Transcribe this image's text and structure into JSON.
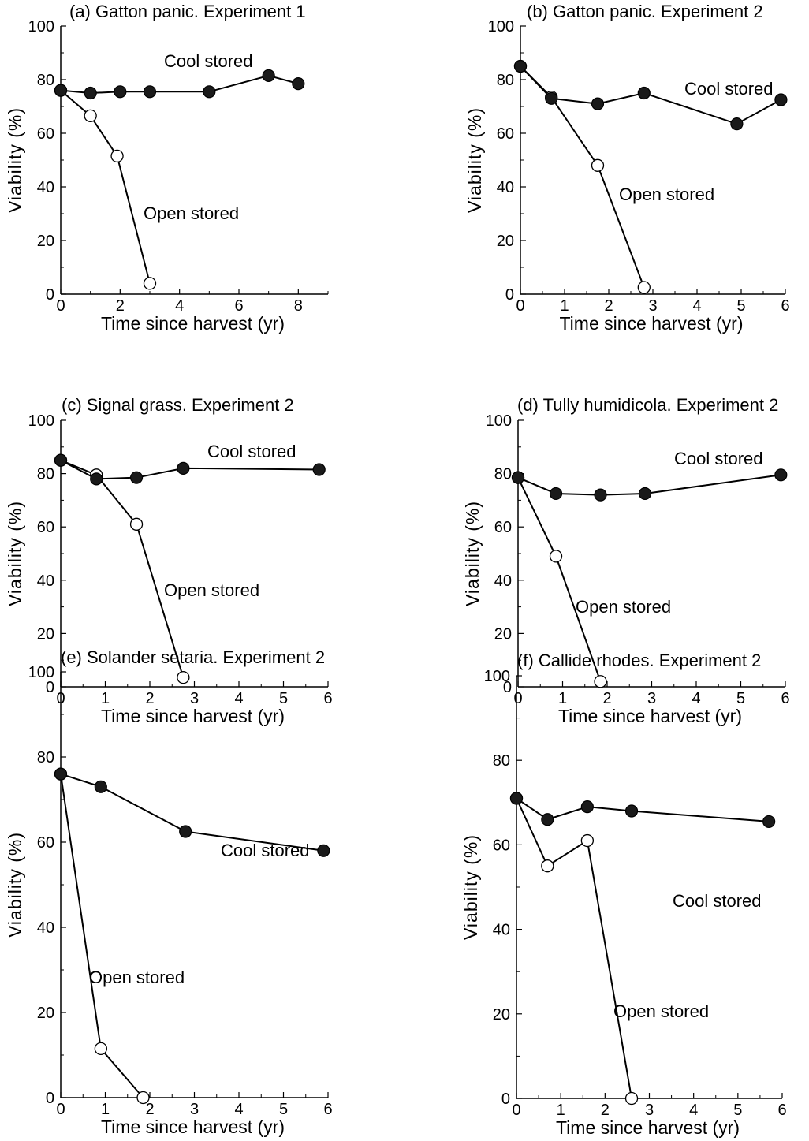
{
  "chart_data": [
    {
      "type": "line",
      "title": "(a) Gatton panic. Experiment 1",
      "xlabel": "Time since harvest (yr)",
      "ylabel": "Viability (%)",
      "xlim": [
        0,
        9
      ],
      "ylim": [
        0,
        100
      ],
      "xticks": [
        0,
        2,
        4,
        6,
        8
      ],
      "xtick_labels": [
        "0",
        "2",
        "4",
        "6",
        "8"
      ],
      "yticks": [
        0,
        20,
        40,
        60,
        80,
        100
      ],
      "series": [
        {
          "name": "Cool stored",
          "marker": "filled",
          "x": [
            0,
            1,
            2,
            3,
            5,
            7,
            8
          ],
          "y": [
            76,
            75,
            75.5,
            75.5,
            75.5,
            81.5,
            78.5
          ]
        },
        {
          "name": "Open stored",
          "marker": "open",
          "x": [
            0,
            1,
            1.9,
            3
          ],
          "y": [
            76,
            66.5,
            51.5,
            4
          ]
        }
      ]
    },
    {
      "type": "line",
      "title": "(b) Gatton panic. Experiment 2",
      "xlabel": "Time since harvest (yr)",
      "ylabel": "Viability (%)",
      "xlim": [
        0,
        6
      ],
      "ylim": [
        0,
        100
      ],
      "xticks": [
        0,
        1,
        2,
        3,
        4,
        5,
        6
      ],
      "xtick_labels": [
        "0",
        "1",
        "2",
        "3",
        "4",
        "5",
        "6"
      ],
      "yticks": [
        0,
        20,
        40,
        60,
        80,
        100
      ],
      "series": [
        {
          "name": "Cool stored",
          "marker": "filled",
          "x": [
            0,
            0.7,
            1.75,
            2.8,
            4.9,
            5.9
          ],
          "y": [
            85,
            73,
            71,
            75,
            63.5,
            72.5
          ]
        },
        {
          "name": "Open stored",
          "marker": "open",
          "x": [
            0,
            0.7,
            1.75,
            2.8
          ],
          "y": [
            85,
            73.5,
            48,
            2.5
          ]
        }
      ]
    },
    {
      "type": "line",
      "title": "(c) Signal grass. Experiment 2",
      "xlabel": "Time since harvest (yr)",
      "ylabel": "Viability (%)",
      "xlim": [
        0,
        6
      ],
      "ylim": [
        0,
        100
      ],
      "xticks": [
        0,
        1,
        2,
        3,
        4,
        5,
        6
      ],
      "xtick_labels": [
        "0",
        "1",
        "2",
        "3",
        "4",
        "5",
        "6"
      ],
      "yticks": [
        0,
        20,
        40,
        60,
        80,
        100
      ],
      "series": [
        {
          "name": "Cool stored",
          "marker": "filled",
          "x": [
            0,
            0.8,
            1.7,
            2.75,
            5.8
          ],
          "y": [
            85,
            78,
            78.5,
            82,
            81.5
          ]
        },
        {
          "name": "Open stored",
          "marker": "open",
          "x": [
            0,
            0.8,
            1.7,
            2.75
          ],
          "y": [
            85,
            79.5,
            61,
            3.5
          ]
        }
      ]
    },
    {
      "type": "line",
      "title": "(d) Tully humidicola. Experiment 2",
      "xlabel": "Time since harvest (yr)",
      "ylabel": "Viability (%)",
      "xlim": [
        0,
        6
      ],
      "ylim": [
        0,
        100
      ],
      "xticks": [
        0,
        1,
        2,
        3,
        4,
        5,
        6
      ],
      "xtick_labels": [
        "0",
        "1",
        "2",
        "3",
        "4",
        "5",
        "6"
      ],
      "yticks": [
        0,
        20,
        40,
        60,
        80,
        100
      ],
      "series": [
        {
          "name": "Cool stored",
          "marker": "filled",
          "x": [
            0,
            0.85,
            1.85,
            2.85,
            5.9
          ],
          "y": [
            78.5,
            72.5,
            72,
            72.5,
            79.5
          ]
        },
        {
          "name": "Open stored",
          "marker": "open",
          "x": [
            0,
            0.85,
            1.85
          ],
          "y": [
            78.5,
            49,
            2
          ]
        }
      ]
    },
    {
      "type": "line",
      "title": "(e) Solander setaria. Experiment 2",
      "xlabel": "Time since harvest (yr)",
      "ylabel": "Viability (%)",
      "xlim": [
        0,
        6
      ],
      "ylim": [
        0,
        100
      ],
      "xticks": [
        0,
        1,
        2,
        3,
        4,
        5,
        6
      ],
      "xtick_labels": [
        "0",
        "1",
        "2",
        "3",
        "4",
        "5",
        "6"
      ],
      "yticks": [
        0,
        20,
        40,
        60,
        80,
        100
      ],
      "series": [
        {
          "name": "Cool stored",
          "marker": "filled",
          "x": [
            0,
            0.9,
            2.8,
            5.9
          ],
          "y": [
            76,
            73,
            62.5,
            58
          ]
        },
        {
          "name": "Open stored",
          "marker": "open",
          "x": [
            0,
            0.9,
            1.85
          ],
          "y": [
            76,
            11.5,
            0
          ]
        }
      ]
    },
    {
      "type": "line",
      "title": "(f) Callide rhodes. Experiment 2",
      "xlabel": "Time since harvest (yr)",
      "ylabel": "Viability (%)",
      "xlim": [
        0,
        6
      ],
      "ylim": [
        0,
        100
      ],
      "xticks": [
        0,
        1,
        2,
        3,
        4,
        5,
        6
      ],
      "xtick_labels": [
        "0",
        "1",
        "2",
        "3",
        "4",
        "5",
        "6"
      ],
      "yticks": [
        0,
        20,
        40,
        60,
        80,
        100
      ],
      "series": [
        {
          "name": "Cool stored",
          "marker": "filled",
          "x": [
            0,
            0.7,
            1.6,
            2.6,
            5.7
          ],
          "y": [
            71,
            66,
            69,
            68,
            65.5
          ]
        },
        {
          "name": "Open stored",
          "marker": "open",
          "x": [
            0,
            0.7,
            1.6,
            2.6
          ],
          "y": [
            71,
            55,
            61,
            0
          ]
        }
      ]
    }
  ]
}
